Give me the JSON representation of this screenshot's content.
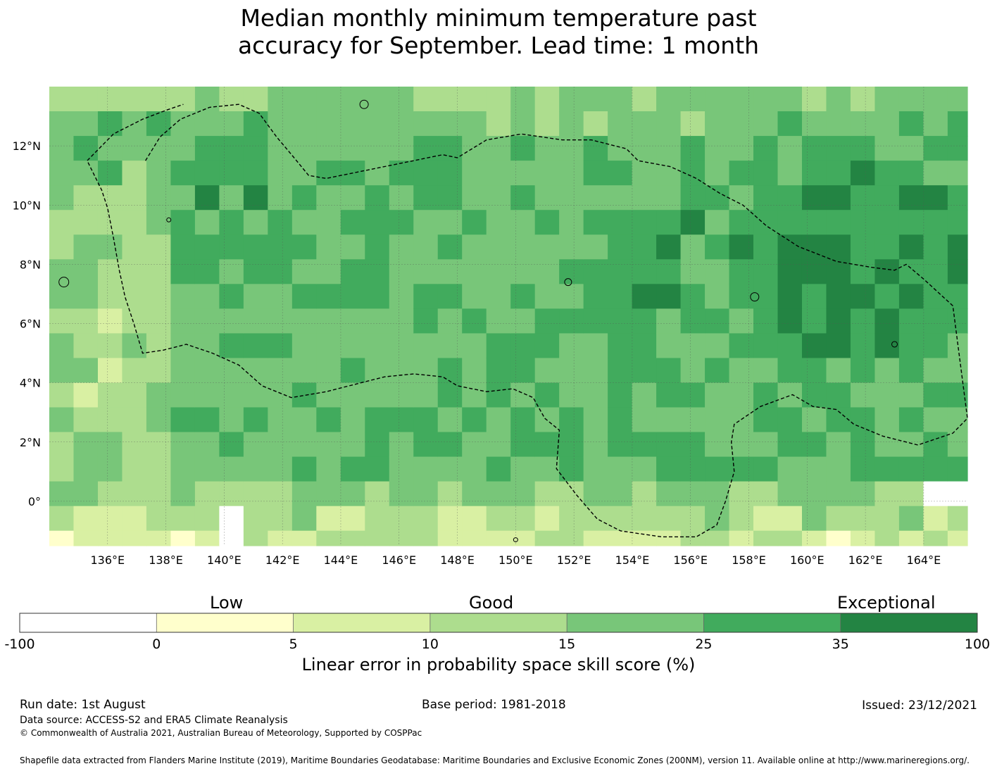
{
  "title": {
    "line1": "Median monthly minimum temperature past",
    "line2": "accuracy for September. Lead time: 1 month"
  },
  "map": {
    "lat_ticks": [
      "12°N",
      "10°N",
      "8°N",
      "6°N",
      "4°N",
      "2°N",
      "0°"
    ],
    "lon_ticks": [
      "136°E",
      "138°E",
      "140°E",
      "142°E",
      "144°E",
      "146°E",
      "148°E",
      "150°E",
      "152°E",
      "154°E",
      "156°E",
      "158°E",
      "160°E",
      "162°E",
      "164°E"
    ],
    "lat_range": [
      -1.5,
      14
    ],
    "lon_range": [
      134,
      165.5
    ],
    "cell_size_deg": 0.833,
    "boundary": "Exclusive Economic Zone (200NM)"
  },
  "colorbar": {
    "categories": [
      "Low",
      "Good",
      "Exceptional"
    ],
    "ticks": [
      "-100",
      "0",
      "5",
      "10",
      "15",
      "25",
      "35",
      "100"
    ],
    "colors": [
      "#ffffff",
      "#ffffcc",
      "#d9f0a3",
      "#addd8e",
      "#78c679",
      "#41ab5d",
      "#238443"
    ],
    "label": "Linear error in probability space skill score (%)"
  },
  "footer": {
    "run_date": "Run date: 1st August",
    "base_period": "Base period: 1981-2018",
    "issued": "Issued: 23/12/2021",
    "data_source": "Data source: ACCESS-S2 and ERA5 Climate Reanalysis",
    "copyright": "© Commonwealth of Australia 2021, Australian Bureau of Meteorology, Supported by COSPPac",
    "shapefile": "Shapefile data extracted from Flanders Marine Institute (2019), Maritime Boundaries Geodatabase: Maritime Boundaries and Exclusive Economic Zones (200NM), version 11. Available online at http://www.marineregions.org/."
  }
}
